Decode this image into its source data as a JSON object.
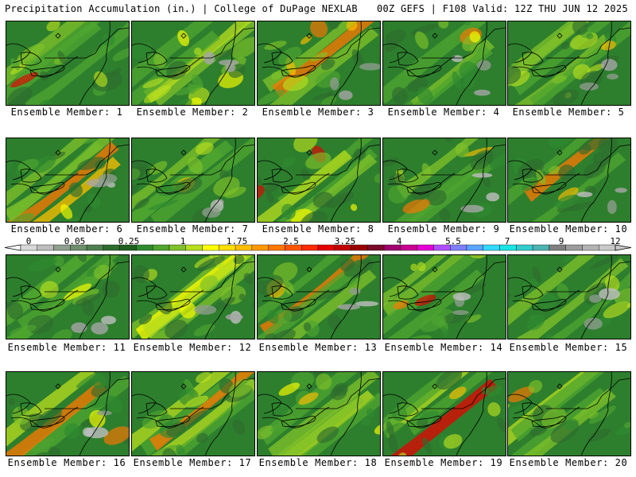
{
  "header": {
    "left": "Precipitation Accumulation (in.) | College of DuPage NEXLAB",
    "right": "00Z GEFS | F108 Valid: 12Z THU JUN 12 2025"
  },
  "members": [
    {
      "label": "Ensemble Member: 1"
    },
    {
      "label": "Ensemble Member: 2"
    },
    {
      "label": "Ensemble Member: 3"
    },
    {
      "label": "Ensemble Member: 4"
    },
    {
      "label": "Ensemble Member: 5"
    },
    {
      "label": "Ensemble Member: 6"
    },
    {
      "label": "Ensemble Member: 7"
    },
    {
      "label": "Ensemble Member: 8"
    },
    {
      "label": "Ensemble Member: 9"
    },
    {
      "label": "Ensemble Member: 10"
    },
    {
      "label": "Ensemble Member: 11"
    },
    {
      "label": "Ensemble Member: 12"
    },
    {
      "label": "Ensemble Member: 13"
    },
    {
      "label": "Ensemble Member: 14"
    },
    {
      "label": "Ensemble Member: 15"
    },
    {
      "label": "Ensemble Member: 16"
    },
    {
      "label": "Ensemble Member: 17"
    },
    {
      "label": "Ensemble Member: 18"
    },
    {
      "label": "Ensemble Member: 19"
    },
    {
      "label": "Ensemble Member: 20"
    }
  ],
  "colorbar": {
    "tick_labels": [
      "0",
      "0.05",
      "0.25",
      "1",
      "1.75",
      "2.5",
      "3.25",
      "4",
      "5.5",
      "7",
      "9",
      "12"
    ],
    "colors": [
      "#d9d9d9",
      "#bdbdbd",
      "#8f9f8f",
      "#6f8f6f",
      "#4f7f4f",
      "#2e6b2e",
      "#1f5f1f",
      "#2f8a2f",
      "#4fa52f",
      "#80c22a",
      "#b8de1e",
      "#ffff00",
      "#ffdf00",
      "#ffbf00",
      "#ff9900",
      "#ff7700",
      "#ff5500",
      "#ff2a00",
      "#e50000",
      "#c20000",
      "#990000",
      "#7a0a2a",
      "#a0006f",
      "#c7008f",
      "#e600d6",
      "#b14dff",
      "#7f7fff",
      "#59a6ff",
      "#33d9ff",
      "#19e5e5",
      "#33cccc",
      "#4db3b3",
      "#808080",
      "#9c9c9c",
      "#b3b3b3",
      "#c9c9c9"
    ]
  }
}
